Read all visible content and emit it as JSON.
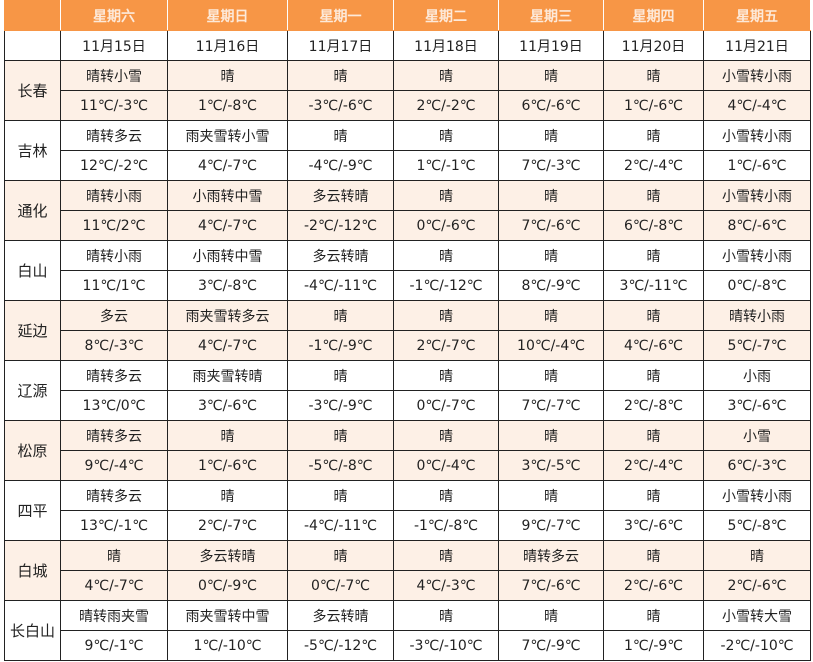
{
  "header": {
    "corner": "",
    "weekdays": [
      "星期六",
      "星期日",
      "星期一",
      "星期二",
      "星期三",
      "星期四",
      "星期五"
    ],
    "dates": [
      "11月15日",
      "11月16日",
      "11月17日",
      "11月18日",
      "11月19日",
      "11月20日",
      "11月21日"
    ]
  },
  "colors": {
    "header_bg": "#f79646",
    "alt_row_bg": "#fdf0e6"
  },
  "cities": [
    {
      "name": "长春",
      "weather": [
        "晴转小雪",
        "晴",
        "晴",
        "晴",
        "晴",
        "晴",
        "小雪转小雨"
      ],
      "temps": [
        "11℃/-3℃",
        "1℃/-8℃",
        "-3℃/-6℃",
        "2℃/-2℃",
        "6℃/-6℃",
        "1℃/-6℃",
        "4℃/-4℃"
      ]
    },
    {
      "name": "吉林",
      "weather": [
        "晴转多云",
        "雨夹雪转小雪",
        "晴",
        "晴",
        "晴",
        "晴",
        "小雪转小雨"
      ],
      "temps": [
        "12℃/-2℃",
        "4℃/-7℃",
        "-4℃/-9℃",
        "1℃/-1℃",
        "7℃/-3℃",
        "2℃/-4℃",
        "1℃/-6℃"
      ]
    },
    {
      "name": "通化",
      "weather": [
        "晴转小雨",
        "小雨转中雪",
        "多云转晴",
        "晴",
        "晴",
        "晴",
        "小雪转小雨"
      ],
      "temps": [
        "11℃/2℃",
        "4℃/-7℃",
        "-2℃/-12℃",
        "0℃/-6℃",
        "7℃/-6℃",
        "6℃/-8℃",
        "8℃/-6℃"
      ]
    },
    {
      "name": "白山",
      "weather": [
        "晴转小雨",
        "小雨转中雪",
        "多云转晴",
        "晴",
        "晴",
        "晴",
        "小雪转小雨"
      ],
      "temps": [
        "11℃/1℃",
        "3℃/-8℃",
        "-4℃/-11℃",
        "-1℃/-12℃",
        "8℃/-9℃",
        "3℃/-11℃",
        "0℃/-8℃"
      ]
    },
    {
      "name": "延边",
      "weather": [
        "多云",
        "雨夹雪转多云",
        "晴",
        "晴",
        "晴",
        "晴",
        "晴转小雨"
      ],
      "temps": [
        "8℃/-3℃",
        "4℃/-7℃",
        "-1℃/-9℃",
        "2℃/-7℃",
        "10℃/-4℃",
        "4℃/-6℃",
        "5℃/-7℃"
      ]
    },
    {
      "name": "辽源",
      "weather": [
        "晴转多云",
        "雨夹雪转晴",
        "晴",
        "晴",
        "晴",
        "晴",
        "小雨"
      ],
      "temps": [
        "13℃/0℃",
        "3℃/-6℃",
        "-3℃/-9℃",
        "0℃/-7℃",
        "7℃/-7℃",
        "2℃/-8℃",
        "3℃/-6℃"
      ]
    },
    {
      "name": "松原",
      "weather": [
        "晴转多云",
        "晴",
        "晴",
        "晴",
        "晴",
        "晴",
        "小雪"
      ],
      "temps": [
        "9℃/-4℃",
        "1℃/-6℃",
        "-5℃/-8℃",
        "0℃/-4℃",
        "3℃/-5℃",
        "2℃/-4℃",
        "6℃/-3℃"
      ]
    },
    {
      "name": "四平",
      "weather": [
        "晴转多云",
        "晴",
        "晴",
        "晴",
        "晴",
        "晴",
        "小雪转小雨"
      ],
      "temps": [
        "13℃/-1℃",
        "2℃/-7℃",
        "-4℃/-11℃",
        "-1℃/-8℃",
        "9℃/-7℃",
        "3℃/-6℃",
        "5℃/-8℃"
      ]
    },
    {
      "name": "白城",
      "weather": [
        "晴",
        "多云转晴",
        "晴",
        "晴",
        "晴转多云",
        "晴",
        "晴"
      ],
      "temps": [
        "4℃/-7℃",
        "0℃/-9℃",
        "0℃/-7℃",
        "4℃/-3℃",
        "7℃/-6℃",
        "2℃/-6℃",
        "2℃/-6℃"
      ]
    },
    {
      "name": "长白山",
      "weather": [
        "晴转雨夹雪",
        "雨夹雪转中雪",
        "多云转晴",
        "晴",
        "晴",
        "晴",
        "小雪转大雪"
      ],
      "temps": [
        "9℃/-1℃",
        "1℃/-10℃",
        "-5℃/-12℃",
        "-3℃/-10℃",
        "7℃/-9℃",
        "1℃/-9℃",
        "-2℃/-10℃"
      ]
    }
  ]
}
